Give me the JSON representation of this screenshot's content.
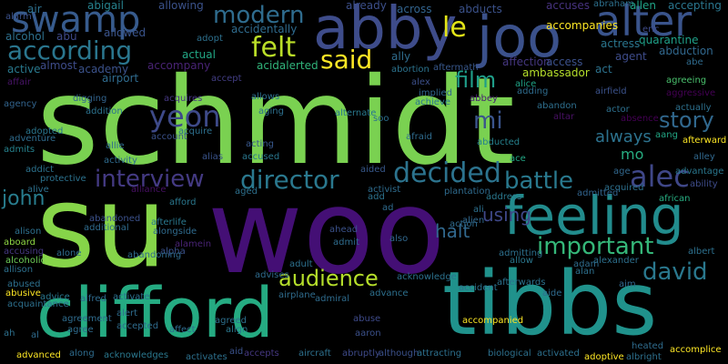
{
  "words": [
    {
      "text": "schmidt",
      "color": "#7ad151"
    },
    {
      "text": "su",
      "color": "#86d549"
    },
    {
      "text": "woo",
      "color": "#440f75"
    },
    {
      "text": "tibbs",
      "color": "#20928c"
    },
    {
      "text": "clifford",
      "color": "#25ab82"
    },
    {
      "text": "abby",
      "color": "#3e4c8a"
    },
    {
      "text": "joo",
      "color": "#3b518b"
    },
    {
      "text": "alter",
      "color": "#3a548c"
    },
    {
      "text": "swamp",
      "color": "#375b8d"
    },
    {
      "text": "feeling",
      "color": "#228c8d"
    },
    {
      "text": "according",
      "color": "#2a768e"
    },
    {
      "text": "modern",
      "color": "#2f6c8e"
    },
    {
      "text": "felt",
      "color": "#bade28"
    },
    {
      "text": "said",
      "color": "#fde725"
    },
    {
      "text": "le",
      "color": "#e2e418"
    },
    {
      "text": "important",
      "color": "#35b779"
    },
    {
      "text": "alec",
      "color": "#3f4788"
    },
    {
      "text": "director",
      "color": "#2a788e"
    },
    {
      "text": "decided",
      "color": "#2c738e"
    },
    {
      "text": "interview",
      "color": "#443a83"
    },
    {
      "text": "battle",
      "color": "#29798e"
    },
    {
      "text": "audience",
      "color": "#b5de2b"
    },
    {
      "text": "david",
      "color": "#2a788e"
    },
    {
      "text": "story",
      "color": "#31688e"
    },
    {
      "text": "yeon",
      "color": "#3e4a89"
    },
    {
      "text": "john",
      "color": "#287d8e"
    },
    {
      "text": "film",
      "color": "#1f9e89"
    },
    {
      "text": "mi",
      "color": "#3a548c"
    },
    {
      "text": "using",
      "color": "#3f4889"
    },
    {
      "text": "halt",
      "color": "#31688e"
    },
    {
      "text": "mo",
      "color": "#27ad81"
    },
    {
      "text": "always",
      "color": "#2c728e"
    },
    {
      "text": "air",
      "color": "#2d708e"
    },
    {
      "text": "abigail",
      "color": "#26828e"
    },
    {
      "text": "allowing",
      "color": "#3b528b"
    },
    {
      "text": "already",
      "color": "#3c4f8a"
    },
    {
      "text": "across",
      "color": "#32648e"
    },
    {
      "text": "abducts",
      "color": "#3b528b"
    },
    {
      "text": "accuses",
      "color": "#46327e"
    },
    {
      "text": "abraham",
      "color": "#2d708e"
    },
    {
      "text": "allen",
      "color": "#20a386"
    },
    {
      "text": "accepting",
      "color": "#2a768e"
    },
    {
      "text": "alcohol",
      "color": "#2d708e"
    },
    {
      "text": "abu",
      "color": "#3e4989"
    },
    {
      "text": "allowed",
      "color": "#3a548c"
    },
    {
      "text": "accidentally",
      "color": "#2f6b8e"
    },
    {
      "text": "accompanies",
      "color": "#fde725"
    },
    {
      "text": "quarantine",
      "color": "#1fa088"
    },
    {
      "text": "active",
      "color": "#29798e"
    },
    {
      "text": "almost",
      "color": "#3e4c8a"
    },
    {
      "text": "academy",
      "color": "#3b528b"
    },
    {
      "text": "accompany",
      "color": "#482374"
    },
    {
      "text": "actual",
      "color": "#22a785"
    },
    {
      "text": "acidalerted",
      "color": "#31b57b"
    },
    {
      "text": "ally",
      "color": "#2f6c8e"
    },
    {
      "text": "affection",
      "color": "#453781"
    },
    {
      "text": "access",
      "color": "#3b518b"
    },
    {
      "text": "actress",
      "color": "#2a768e"
    },
    {
      "text": "agent",
      "color": "#3e4c8a"
    },
    {
      "text": "abduction",
      "color": "#31688e"
    },
    {
      "text": "act",
      "color": "#2c728e"
    },
    {
      "text": "ambassador",
      "color": "#b5de2b"
    },
    {
      "text": "airport",
      "color": "#2f6b8e"
    },
    {
      "text": "alarm",
      "color": "#3b518b"
    },
    {
      "text": "adopt",
      "color": "#2d708e"
    },
    {
      "text": "aftermath",
      "color": "#38588c"
    },
    {
      "text": "abortion",
      "color": "#2c738e"
    },
    {
      "text": "alex",
      "color": "#3c4f8a"
    },
    {
      "text": "alice",
      "color": "#20a386"
    },
    {
      "text": "adding",
      "color": "#2f6c8e"
    },
    {
      "text": "agreeing",
      "color": "#4ac16d"
    },
    {
      "text": "aggressive",
      "color": "#440154"
    },
    {
      "text": "abbey",
      "color": "#482071"
    },
    {
      "text": "implied",
      "color": "#31688e"
    },
    {
      "text": "achieve",
      "color": "#2a788e"
    },
    {
      "text": "digging",
      "color": "#32648e"
    },
    {
      "text": "accept",
      "color": "#433e85"
    },
    {
      "text": "acquires",
      "color": "#453781"
    },
    {
      "text": "allows",
      "color": "#2d708e"
    },
    {
      "text": "aging",
      "color": "#2d708e"
    },
    {
      "text": "alternate",
      "color": "#29798e"
    },
    {
      "text": "soo",
      "color": "#2d708e"
    },
    {
      "text": "abandon",
      "color": "#2e6f8e"
    },
    {
      "text": "actor",
      "color": "#2d708e"
    },
    {
      "text": "airfield",
      "color": "#3b528b"
    },
    {
      "text": "actually",
      "color": "#2d708e"
    },
    {
      "text": "absence",
      "color": "#440154"
    },
    {
      "text": "altar",
      "color": "#471063"
    },
    {
      "text": "aang",
      "color": "#22a785"
    },
    {
      "text": "affair",
      "color": "#481467"
    },
    {
      "text": "agency",
      "color": "#32648e"
    },
    {
      "text": "addition",
      "color": "#2c728e"
    },
    {
      "text": "adopted",
      "color": "#2a768e"
    },
    {
      "text": "adventure",
      "color": "#2f6c8e"
    },
    {
      "text": "admits",
      "color": "#26828e"
    },
    {
      "text": "addict",
      "color": "#2c728e"
    },
    {
      "text": "acquire",
      "color": "#2d708e"
    },
    {
      "text": "account",
      "color": "#3b518b"
    },
    {
      "text": "allie",
      "color": "#2f6b8e"
    },
    {
      "text": "alias",
      "color": "#3a548c"
    },
    {
      "text": "acting",
      "color": "#38588c"
    },
    {
      "text": "accused",
      "color": "#2a778e"
    },
    {
      "text": "afraid",
      "color": "#2f6c8e"
    },
    {
      "text": "abducted",
      "color": "#26828e"
    },
    {
      "text": "afterward",
      "color": "#fde725"
    },
    {
      "text": "alley",
      "color": "#31688e"
    },
    {
      "text": "advantage",
      "color": "#2a778e"
    },
    {
      "text": "ability",
      "color": "#3e4c8a"
    },
    {
      "text": "activity",
      "color": "#2f6b8e"
    },
    {
      "text": "ace",
      "color": "#22a785"
    },
    {
      "text": "aided",
      "color": "#38588c"
    },
    {
      "text": "age",
      "color": "#31688e"
    },
    {
      "text": "protective",
      "color": "#2c728e"
    },
    {
      "text": "alive",
      "color": "#2d708e"
    },
    {
      "text": "alliance",
      "color": "#471063"
    },
    {
      "text": "aged",
      "color": "#2d708e"
    },
    {
      "text": "activist",
      "color": "#2f6c8e"
    },
    {
      "text": "add",
      "color": "#2c728e"
    },
    {
      "text": "plantation",
      "color": "#2f6b8e"
    },
    {
      "text": "address",
      "color": "#2a788e"
    },
    {
      "text": "acquired",
      "color": "#2d708e"
    },
    {
      "text": "admitted",
      "color": "#32648e"
    },
    {
      "text": "african",
      "color": "#27ad81"
    },
    {
      "text": "afford",
      "color": "#2a778e"
    },
    {
      "text": "ad",
      "color": "#2f6b8e"
    },
    {
      "text": "ali",
      "color": "#2d708e"
    },
    {
      "text": "action",
      "color": "#2f6b8e"
    },
    {
      "text": "alien",
      "color": "#31688e"
    },
    {
      "text": "abandoned",
      "color": "#3b518b"
    },
    {
      "text": "afterlife",
      "color": "#2a788e"
    },
    {
      "text": "alongside",
      "color": "#2f6b8e"
    },
    {
      "text": "alamein",
      "color": "#482374"
    },
    {
      "text": "alpha",
      "color": "#3b528b"
    },
    {
      "text": "additional",
      "color": "#2f6b8e"
    },
    {
      "text": "alison",
      "color": "#2d708e"
    },
    {
      "text": "alone",
      "color": "#2f6c8e"
    },
    {
      "text": "aboard",
      "color": "#8fd744"
    },
    {
      "text": "accusing",
      "color": "#453781"
    },
    {
      "text": "alcoholic",
      "color": "#6ece58"
    },
    {
      "text": "allison",
      "color": "#2d708e"
    },
    {
      "text": "abandoning",
      "color": "#2f6b8e"
    },
    {
      "text": "ahead",
      "color": "#3b528b"
    },
    {
      "text": "admit",
      "color": "#2f6c8e"
    },
    {
      "text": "adult",
      "color": "#2d708e"
    },
    {
      "text": "also",
      "color": "#31688e"
    },
    {
      "text": "admitting",
      "color": "#2d708e"
    },
    {
      "text": "allow",
      "color": "#2a778e"
    },
    {
      "text": "adam",
      "color": "#2f6c8e"
    },
    {
      "text": "alexander",
      "color": "#2d708e"
    },
    {
      "text": "alan",
      "color": "#2d708e"
    },
    {
      "text": "albert",
      "color": "#2d708e"
    },
    {
      "text": "aim",
      "color": "#31688e"
    },
    {
      "text": "advises",
      "color": "#2f6b8e"
    },
    {
      "text": "acknowledge",
      "color": "#2c728e"
    },
    {
      "text": "afterwards",
      "color": "#2c728e"
    },
    {
      "text": "abused",
      "color": "#2d708e"
    },
    {
      "text": "abusive",
      "color": "#fde725"
    },
    {
      "text": "advice",
      "color": "#2a778e"
    },
    {
      "text": "alfred",
      "color": "#2f6b8e"
    },
    {
      "text": "activate",
      "color": "#2d708e"
    },
    {
      "text": "airplane",
      "color": "#2f6c8e"
    },
    {
      "text": "admiral",
      "color": "#2f6c8e"
    },
    {
      "text": "advance",
      "color": "#2d708e"
    },
    {
      "text": "accident",
      "color": "#2d708e"
    },
    {
      "text": "aide",
      "color": "#2f6b8e"
    },
    {
      "text": "acquaintance",
      "color": "#2d708e"
    },
    {
      "text": "agreement",
      "color": "#2f6c8e"
    },
    {
      "text": "alert",
      "color": "#2f6c8e"
    },
    {
      "text": "agreed",
      "color": "#2d708e"
    },
    {
      "text": "align",
      "color": "#2a778e"
    },
    {
      "text": "abuse",
      "color": "#3e4a89"
    },
    {
      "text": "accompanied",
      "color": "#fde725"
    },
    {
      "text": "ah",
      "color": "#2d708e"
    },
    {
      "text": "al",
      "color": "#2f6b8e"
    },
    {
      "text": "agree",
      "color": "#2f6c8e"
    },
    {
      "text": "accepted",
      "color": "#2f6c8e"
    },
    {
      "text": "affect",
      "color": "#2f6b8e"
    },
    {
      "text": "aaron",
      "color": "#3b518b"
    },
    {
      "text": "heated",
      "color": "#2f6c8e"
    },
    {
      "text": "accomplice",
      "color": "#fde725"
    },
    {
      "text": "advanced",
      "color": "#fde725"
    },
    {
      "text": "along",
      "color": "#2f6c8e"
    },
    {
      "text": "acknowledges",
      "color": "#2a788e"
    },
    {
      "text": "activates",
      "color": "#2d708e"
    },
    {
      "text": "aid",
      "color": "#3b528b"
    },
    {
      "text": "accepts",
      "color": "#453781"
    },
    {
      "text": "aircraft",
      "color": "#2d708e"
    },
    {
      "text": "abruptly",
      "color": "#3e4a89"
    },
    {
      "text": "although",
      "color": "#3b518b"
    },
    {
      "text": "attracting",
      "color": "#2d708e"
    },
    {
      "text": "biological",
      "color": "#2d708e"
    },
    {
      "text": "activated",
      "color": "#2d708e"
    },
    {
      "text": "adoptive",
      "color": "#fde725"
    },
    {
      "text": "albright",
      "color": "#2d708e"
    },
    {
      "text": "eric",
      "color": "#3e4a89"
    },
    {
      "text": "abe",
      "color": "#2f6b8e"
    }
  ]
}
